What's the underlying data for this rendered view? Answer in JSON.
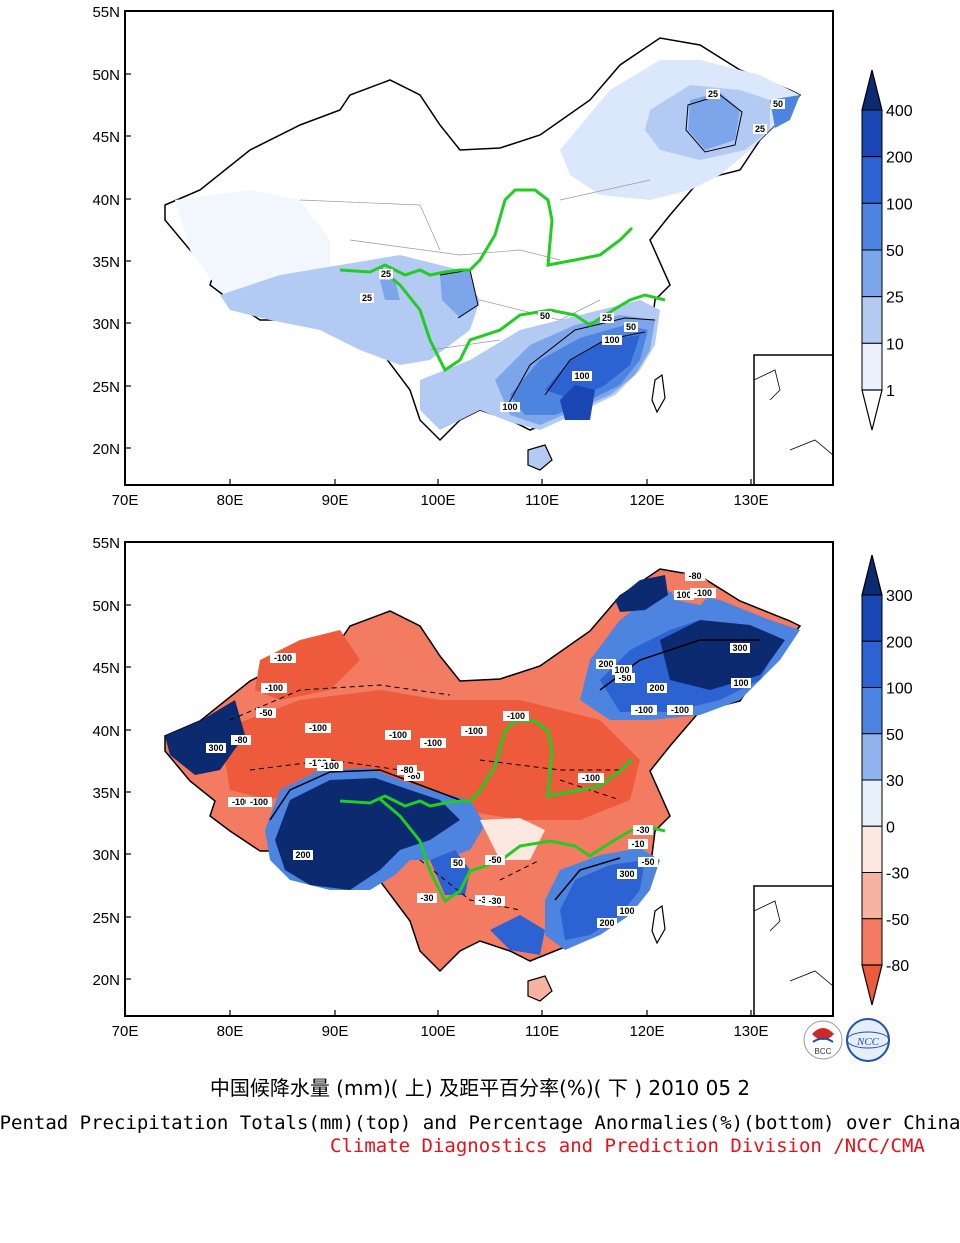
{
  "maps": [
    {
      "id": "top",
      "lat_labels": [
        "55N",
        "50N",
        "45N",
        "40N",
        "35N",
        "30N",
        "25N",
        "20N"
      ],
      "lon_labels": [
        "70E",
        "80E",
        "90E",
        "100E",
        "110E",
        "120E",
        "130E"
      ],
      "contour_labels": [
        "25",
        "50",
        "25",
        "25",
        "25",
        "25",
        "50",
        "100",
        "100",
        "100",
        "50",
        "25"
      ],
      "colorbar": {
        "labels": [
          "400",
          "200",
          "100",
          "50",
          "25",
          "10",
          "1"
        ],
        "colors": [
          "#0b2a6f",
          "#1a46b4",
          "#2c62d2",
          "#4d84df",
          "#7da5e9",
          "#b3cbf3",
          "#eaf1fc",
          "#ffffff"
        ]
      }
    },
    {
      "id": "bottom",
      "lat_labels": [
        "55N",
        "50N",
        "45N",
        "40N",
        "35N",
        "30N",
        "25N",
        "20N"
      ],
      "lon_labels": [
        "70E",
        "80E",
        "90E",
        "100E",
        "110E",
        "120E",
        "130E"
      ],
      "contour_labels": [
        "-100",
        "-100",
        "-50",
        "-80",
        "-100",
        "-100",
        "-100",
        "-100",
        "-100",
        "-100",
        "-100",
        "-100",
        "-100",
        "-80",
        "-80",
        "-100",
        "-100",
        "-100",
        "-50",
        "-30",
        "-10",
        "300",
        "200",
        "100",
        "200",
        "100",
        "300",
        "50",
        "200",
        "-30",
        "-30",
        "-50",
        "200",
        "100",
        "300",
        "100",
        "-80",
        "-100",
        "-50",
        "-30"
      ],
      "colorbar": {
        "labels": [
          "300",
          "200",
          "100",
          "50",
          "30",
          "0",
          "-30",
          "-50",
          "-80"
        ],
        "colors": [
          "#0b2a6f",
          "#1a46b4",
          "#2c62d2",
          "#4d84df",
          "#8fb3ec",
          "#e8f0fb",
          "#fde7e1",
          "#f7b3a2",
          "#f27b62",
          "#ee5a3c"
        ]
      }
    }
  ],
  "rivers_color": "#22cc22",
  "logos": [
    "BCC",
    "NCC"
  ],
  "caption_cn": "中国候降水量 (mm)( 上) 及距平百分率(%)( 下 ) 2010 05 2",
  "caption_en": "Pentad Precipitation Totals(mm)(top) and Percentage Anormalies(%)(bottom) over China",
  "caption_division": "Climate Diagnostics and Prediction Division /NCC/CMA"
}
